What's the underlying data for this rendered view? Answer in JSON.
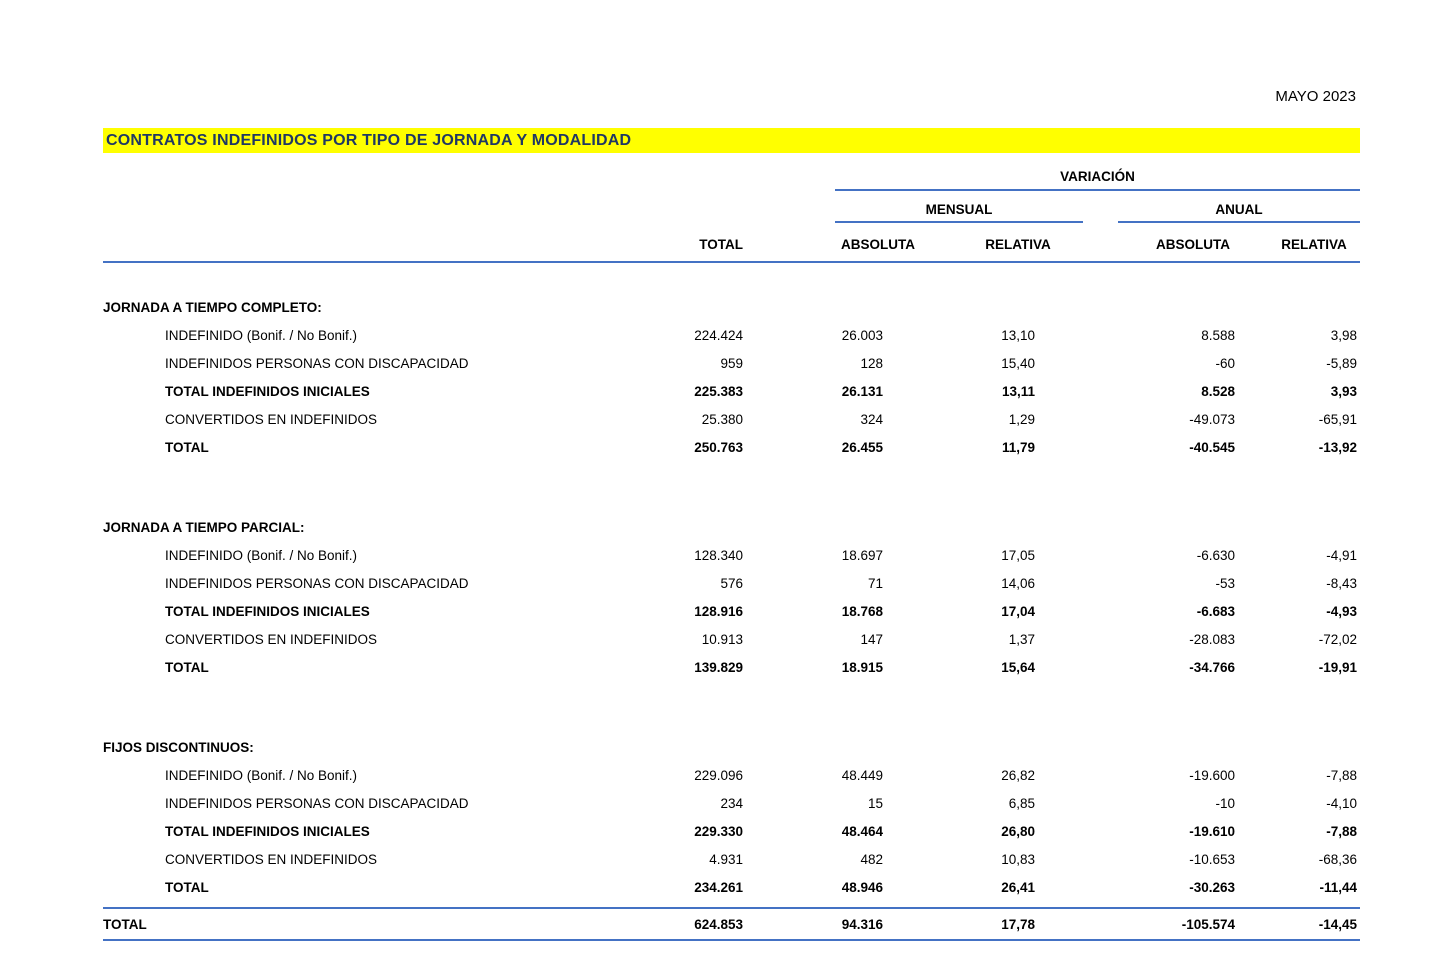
{
  "page": {
    "date_label": "MAYO 2023",
    "title": "CONTRATOS INDEFINIDOS POR TIPO DE JORNADA Y MODALIDAD"
  },
  "colors": {
    "highlight": "#ffff00",
    "title_text": "#1f3864",
    "rule_blue": "#4472c4",
    "text": "#000000"
  },
  "table": {
    "headers": {
      "variacion": "VARIACIÓN",
      "mensual": "MENSUAL",
      "anual": "ANUAL",
      "total": "TOTAL",
      "mensual_absoluta": "ABSOLUTA",
      "mensual_relativa": "RELATIVA",
      "anual_absoluta": "ABSOLUTA",
      "anual_relativa": "RELATIVA"
    },
    "columns": [
      "TOTAL",
      "MENSUAL ABSOLUTA",
      "MENSUAL RELATIVA",
      "ANUAL ABSOLUTA",
      "ANUAL RELATIVA"
    ],
    "sections": [
      {
        "title": "JORNADA A TIEMPO COMPLETO:",
        "rows": [
          {
            "label": "INDEFINIDO (Bonif. / No Bonif.)",
            "bold": false,
            "values": [
              "224.424",
              "26.003",
              "13,10",
              "8.588",
              "3,98"
            ]
          },
          {
            "label": "INDEFINIDOS PERSONAS CON DISCAPACIDAD",
            "bold": false,
            "values": [
              "959",
              "128",
              "15,40",
              "-60",
              "-5,89"
            ]
          },
          {
            "label": "TOTAL INDEFINIDOS INICIALES",
            "bold": true,
            "values": [
              "225.383",
              "26.131",
              "13,11",
              "8.528",
              "3,93"
            ]
          },
          {
            "label": "CONVERTIDOS EN INDEFINIDOS",
            "bold": false,
            "values": [
              "25.380",
              "324",
              "1,29",
              "-49.073",
              "-65,91"
            ]
          },
          {
            "label": "TOTAL",
            "bold": true,
            "values": [
              "250.763",
              "26.455",
              "11,79",
              "-40.545",
              "-13,92"
            ]
          }
        ]
      },
      {
        "title": "JORNADA A TIEMPO PARCIAL:",
        "rows": [
          {
            "label": "INDEFINIDO (Bonif. / No Bonif.)",
            "bold": false,
            "values": [
              "128.340",
              "18.697",
              "17,05",
              "-6.630",
              "-4,91"
            ]
          },
          {
            "label": "INDEFINIDOS PERSONAS CON DISCAPACIDAD",
            "bold": false,
            "values": [
              "576",
              "71",
              "14,06",
              "-53",
              "-8,43"
            ]
          },
          {
            "label": "TOTAL INDEFINIDOS INICIALES",
            "bold": true,
            "values": [
              "128.916",
              "18.768",
              "17,04",
              "-6.683",
              "-4,93"
            ]
          },
          {
            "label": "CONVERTIDOS EN INDEFINIDOS",
            "bold": false,
            "values": [
              "10.913",
              "147",
              "1,37",
              "-28.083",
              "-72,02"
            ]
          },
          {
            "label": "TOTAL",
            "bold": true,
            "values": [
              "139.829",
              "18.915",
              "15,64",
              "-34.766",
              "-19,91"
            ]
          }
        ]
      },
      {
        "title": "FIJOS DISCONTINUOS:",
        "rows": [
          {
            "label": "INDEFINIDO (Bonif. / No Bonif.)",
            "bold": false,
            "values": [
              "229.096",
              "48.449",
              "26,82",
              "-19.600",
              "-7,88"
            ]
          },
          {
            "label": "INDEFINIDOS PERSONAS CON DISCAPACIDAD",
            "bold": false,
            "values": [
              "234",
              "15",
              "6,85",
              "-10",
              "-4,10"
            ]
          },
          {
            "label": "TOTAL INDEFINIDOS INICIALES",
            "bold": true,
            "values": [
              "229.330",
              "48.464",
              "26,80",
              "-19.610",
              "-7,88"
            ]
          },
          {
            "label": "CONVERTIDOS EN INDEFINIDOS",
            "bold": false,
            "values": [
              "4.931",
              "482",
              "10,83",
              "-10.653",
              "-68,36"
            ]
          },
          {
            "label": "TOTAL",
            "bold": true,
            "values": [
              "234.261",
              "48.946",
              "26,41",
              "-30.263",
              "-11,44"
            ]
          }
        ]
      }
    ],
    "grand_total": {
      "label": "TOTAL",
      "bold": true,
      "values": [
        "624.853",
        "94.316",
        "17,78",
        "-105.574",
        "-14,45"
      ]
    }
  }
}
